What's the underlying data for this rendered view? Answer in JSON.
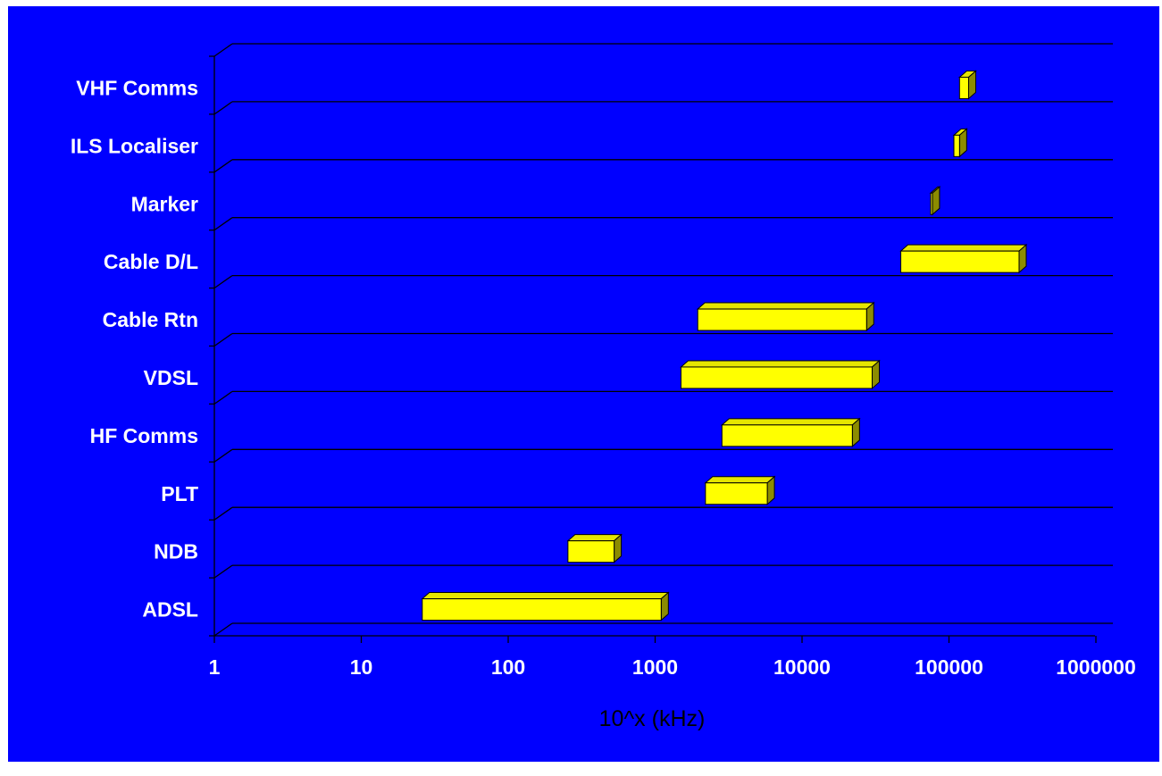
{
  "chart_data": {
    "type": "bar",
    "orientation": "horizontal",
    "style": "3d-floating-range",
    "xscale": "log",
    "xlabel": "10^x (kHz)",
    "xlim": [
      1,
      1000000
    ],
    "xticks": [
      "1",
      "10",
      "100",
      "1000",
      "10000",
      "100000",
      "1000000"
    ],
    "tick_values": [
      1,
      10,
      100,
      1000,
      10000,
      100000,
      1000000
    ],
    "categories": [
      "ADSL",
      "NDB",
      "PLT",
      "HF Comms",
      "VDSL",
      "Cable Rtn",
      "Cable D/L",
      "Marker",
      "ILS Localiser",
      "VHF Comms"
    ],
    "series": [
      {
        "ranges": [
          [
            26,
            1100
          ],
          [
            255,
            526
          ],
          [
            2200,
            5800
          ],
          [
            2850,
            22000
          ],
          [
            1500,
            30000
          ],
          [
            1950,
            27500
          ],
          [
            47000,
            300000
          ],
          [
            75000,
            75000
          ],
          [
            108000,
            118000
          ],
          [
            118000,
            136000
          ]
        ]
      }
    ],
    "grid": true,
    "legend": "none",
    "colors": {
      "background": "#0000ff",
      "bar_front": "#ffff00",
      "bar_top": "#e6e600",
      "bar_side": "#8c8c00",
      "grid": "#000000"
    }
  }
}
